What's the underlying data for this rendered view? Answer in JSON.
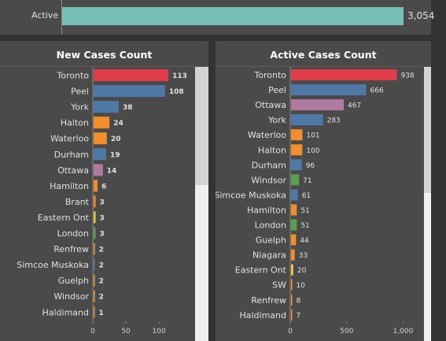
{
  "summary": {
    "label": "Active",
    "value_label": "3,054",
    "value": 3054,
    "max": 3300,
    "color": "#76bdb3"
  },
  "chart_data": [
    {
      "type": "bar",
      "orientation": "horizontal",
      "title": "New Cases Count",
      "categories": [
        "Toronto",
        "Peel",
        "York",
        "Halton",
        "Waterloo",
        "Durham",
        "Ottawa",
        "Hamilton",
        "Brant",
        "Eastern Ont",
        "London",
        "Renfrew",
        "Simcoe Muskoka",
        "Guelph",
        "Windsor",
        "Haldimand"
      ],
      "values": [
        113,
        108,
        38,
        24,
        20,
        19,
        14,
        6,
        3,
        3,
        3,
        2,
        2,
        2,
        2,
        1
      ],
      "colors": [
        "#e03c49",
        "#4e79a7",
        "#4e79a7",
        "#f28e2b",
        "#f28e2b",
        "#4e79a7",
        "#b07aa1",
        "#f28e2b",
        "#f28e2b",
        "#edc948",
        "#59a14f",
        "#f28e2b",
        "#4e79a7",
        "#f28e2b",
        "#f28e2b",
        "#f28e2b"
      ],
      "xlim": [
        0,
        145
      ],
      "xticks": [
        0,
        50,
        100
      ],
      "xtick_labels": [
        "0",
        "50",
        "100"
      ],
      "grid": false
    },
    {
      "type": "bar",
      "orientation": "horizontal",
      "title": "Active Cases Count",
      "categories": [
        "Toronto",
        "Peel",
        "Ottawa",
        "York",
        "Waterloo",
        "Halton",
        "Durham",
        "Windsor",
        "Simcoe Muskoka",
        "Hamilton",
        "London",
        "Guelph",
        "Niagara",
        "Eastern Ont",
        "SW",
        "Renfrew",
        "Haldimand"
      ],
      "values": [
        938,
        666,
        467,
        283,
        101,
        100,
        96,
        71,
        61,
        51,
        51,
        44,
        33,
        20,
        10,
        8,
        7
      ],
      "colors": [
        "#e03c49",
        "#4e79a7",
        "#b07aa1",
        "#4e79a7",
        "#f28e2b",
        "#f28e2b",
        "#4e79a7",
        "#59a14f",
        "#4e79a7",
        "#f28e2b",
        "#59a14f",
        "#f28e2b",
        "#f28e2b",
        "#edc948",
        "#f28e2b",
        "#f28e2b",
        "#f28e2b"
      ],
      "xlim": [
        0,
        1150
      ],
      "xticks": [
        0,
        500,
        1000
      ],
      "xtick_labels": [
        "0",
        "500",
        "1,000"
      ],
      "grid": false
    }
  ]
}
